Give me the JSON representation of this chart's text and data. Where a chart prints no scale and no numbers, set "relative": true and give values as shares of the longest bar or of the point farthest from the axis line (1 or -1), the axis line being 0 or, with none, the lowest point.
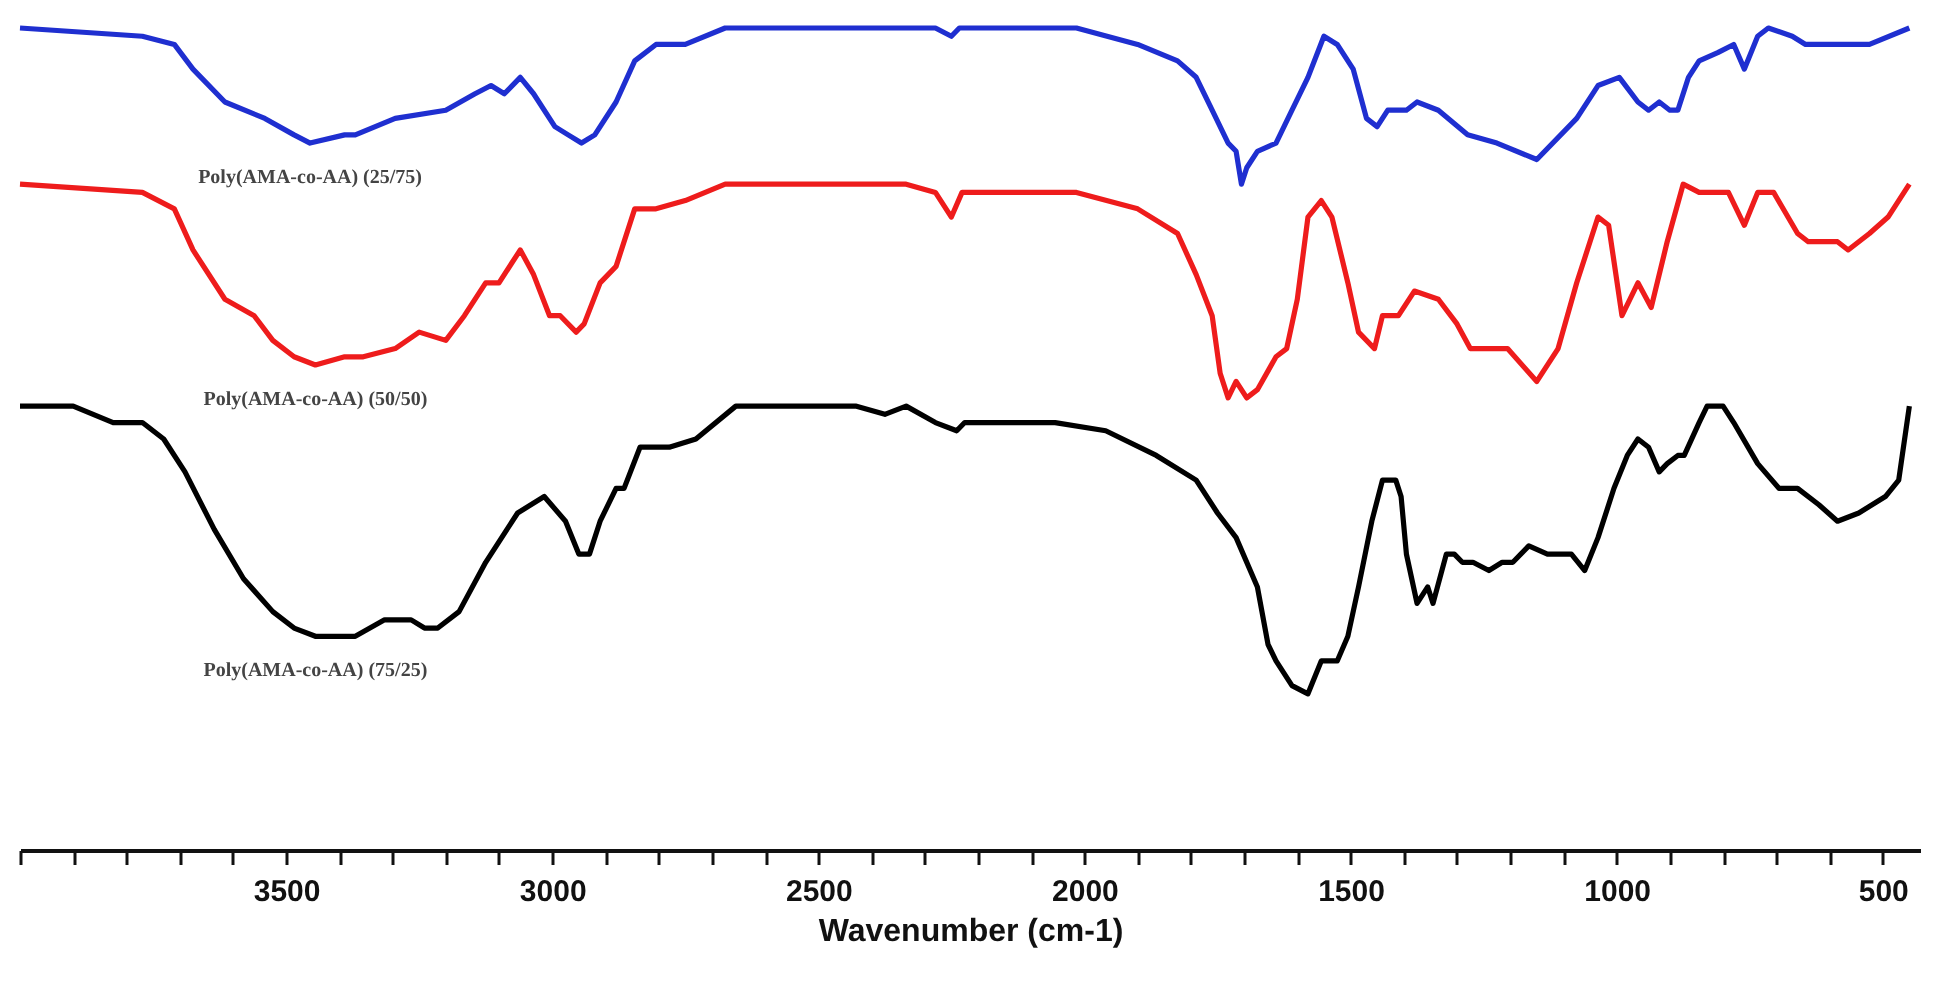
{
  "chart_data": {
    "type": "line",
    "relative": true,
    "xlabel": "Wavenumber (cm-1)",
    "xlim": [
      4000,
      430
    ],
    "xticks": [
      {
        "value": 4000,
        "label": null
      },
      {
        "value": 3900,
        "label": null
      },
      {
        "value": 3800,
        "label": null
      },
      {
        "value": 3700,
        "label": null
      },
      {
        "value": 3600,
        "label": null
      },
      3500,
      {
        "value": 3400,
        "label": null
      },
      {
        "value": 3300,
        "label": null
      },
      {
        "value": 3200,
        "label": null
      },
      {
        "value": 3100,
        "label": null
      },
      3000,
      {
        "value": 2900,
        "label": null
      },
      {
        "value": 2800,
        "label": null
      },
      {
        "value": 2700,
        "label": null
      },
      {
        "value": 2600,
        "label": null
      },
      2500,
      {
        "value": 2400,
        "label": null
      },
      {
        "value": 2300,
        "label": null
      },
      {
        "value": 2200,
        "label": null
      },
      {
        "value": 2100,
        "label": null
      },
      2000,
      {
        "value": 1900,
        "label": null
      },
      {
        "value": 1800,
        "label": null
      },
      {
        "value": 1700,
        "label": null
      },
      {
        "value": 1600,
        "label": null
      },
      1500,
      {
        "value": 1400,
        "label": null
      },
      {
        "value": 1300,
        "label": null
      },
      {
        "value": 1200,
        "label": null
      },
      {
        "value": 1100,
        "label": null
      },
      1000,
      {
        "value": 900,
        "label": null
      },
      {
        "value": 800,
        "label": null
      },
      {
        "value": 700,
        "label": null
      },
      {
        "value": 600,
        "label": null
      },
      500
    ],
    "line_style": "solid",
    "series": [
      {
        "name": "Poly(AMA-co-AA) (25/75)",
        "color": "#1f2fd0",
        "x": [
          4000,
          3770,
          3710,
          3675,
          3615,
          3540,
          3485,
          3455,
          3390,
          3370,
          3295,
          3200,
          3145,
          3115,
          3090,
          3060,
          3035,
          2995,
          2970,
          2945,
          2920,
          2880,
          2845,
          2805,
          2750,
          2675,
          2465,
          2280,
          2250,
          2235,
          2205,
          2015,
          1900,
          1825,
          1790,
          1760,
          1730,
          1715,
          1705,
          1695,
          1675,
          1640,
          1610,
          1580,
          1550,
          1525,
          1495,
          1470,
          1450,
          1430,
          1395,
          1375,
          1335,
          1280,
          1225,
          1150,
          1075,
          1035,
          995,
          960,
          940,
          920,
          900,
          885,
          865,
          845,
          810,
          780,
          760,
          735,
          715,
          670,
          645,
          585,
          555,
          525,
          450
        ],
        "values": [
          1.0,
          0.99,
          0.98,
          0.95,
          0.91,
          0.89,
          0.87,
          0.86,
          0.87,
          0.87,
          0.89,
          0.9,
          0.92,
          0.93,
          0.92,
          0.94,
          0.92,
          0.88,
          0.87,
          0.86,
          0.87,
          0.91,
          0.96,
          0.98,
          0.98,
          1.0,
          1.0,
          1.0,
          0.99,
          1.0,
          1.0,
          1.0,
          0.98,
          0.96,
          0.94,
          0.9,
          0.86,
          0.85,
          0.81,
          0.83,
          0.85,
          0.86,
          0.9,
          0.94,
          0.99,
          0.98,
          0.95,
          0.89,
          0.88,
          0.9,
          0.9,
          0.91,
          0.9,
          0.87,
          0.86,
          0.84,
          0.89,
          0.93,
          0.94,
          0.91,
          0.9,
          0.91,
          0.9,
          0.9,
          0.94,
          0.96,
          0.97,
          0.98,
          0.95,
          0.99,
          1.0,
          0.99,
          0.98,
          0.98,
          0.98,
          0.98,
          1.0
        ]
      },
      {
        "name": "Poly(AMA-co-AA) (50/50)",
        "color": "#ee1c1c",
        "x": [
          4000,
          3770,
          3710,
          3675,
          3615,
          3560,
          3525,
          3485,
          3445,
          3390,
          3355,
          3295,
          3250,
          3200,
          3165,
          3125,
          3100,
          3060,
          3035,
          3005,
          2985,
          2955,
          2940,
          2910,
          2880,
          2845,
          2805,
          2750,
          2675,
          2465,
          2390,
          2335,
          2280,
          2250,
          2230,
          2205,
          2015,
          1900,
          1825,
          1790,
          1760,
          1745,
          1730,
          1715,
          1695,
          1675,
          1640,
          1620,
          1600,
          1580,
          1555,
          1535,
          1505,
          1485,
          1455,
          1440,
          1410,
          1380,
          1335,
          1300,
          1275,
          1240,
          1205,
          1150,
          1110,
          1075,
          1035,
          1015,
          990,
          960,
          935,
          905,
          875,
          845,
          815,
          790,
          760,
          735,
          705,
          660,
          640,
          585,
          565,
          525,
          490,
          450
        ],
        "values": [
          0.81,
          0.8,
          0.78,
          0.73,
          0.67,
          0.65,
          0.62,
          0.6,
          0.59,
          0.6,
          0.6,
          0.61,
          0.63,
          0.62,
          0.65,
          0.69,
          0.69,
          0.73,
          0.7,
          0.65,
          0.65,
          0.63,
          0.64,
          0.69,
          0.71,
          0.78,
          0.78,
          0.79,
          0.81,
          0.81,
          0.81,
          0.81,
          0.8,
          0.77,
          0.8,
          0.8,
          0.8,
          0.78,
          0.75,
          0.7,
          0.65,
          0.58,
          0.55,
          0.57,
          0.55,
          0.56,
          0.6,
          0.61,
          0.67,
          0.77,
          0.79,
          0.77,
          0.69,
          0.63,
          0.61,
          0.65,
          0.65,
          0.68,
          0.67,
          0.64,
          0.61,
          0.61,
          0.61,
          0.57,
          0.61,
          0.69,
          0.77,
          0.76,
          0.65,
          0.69,
          0.66,
          0.74,
          0.81,
          0.8,
          0.8,
          0.8,
          0.76,
          0.8,
          0.8,
          0.75,
          0.74,
          0.74,
          0.73,
          0.75,
          0.77,
          0.81
        ]
      },
      {
        "name": "Poly(AMA-co-AA) (75/25)",
        "color": "#000000",
        "x": [
          4000,
          3900,
          3825,
          3770,
          3730,
          3690,
          3635,
          3580,
          3525,
          3485,
          3445,
          3370,
          3315,
          3265,
          3240,
          3215,
          3175,
          3125,
          3065,
          3015,
          2975,
          2950,
          2930,
          2910,
          2880,
          2865,
          2835,
          2805,
          2780,
          2730,
          2655,
          2430,
          2375,
          2335,
          2280,
          2240,
          2225,
          2055,
          1960,
          1865,
          1790,
          1750,
          1715,
          1675,
          1655,
          1640,
          1610,
          1580,
          1555,
          1525,
          1505,
          1485,
          1460,
          1440,
          1415,
          1405,
          1395,
          1375,
          1355,
          1345,
          1320,
          1305,
          1290,
          1270,
          1240,
          1215,
          1195,
          1165,
          1130,
          1085,
          1060,
          1035,
          1005,
          980,
          960,
          940,
          920,
          905,
          885,
          873,
          845,
          830,
          800,
          780,
          735,
          695,
          660,
          620,
          585,
          545,
          495,
          470,
          450
        ],
        "values": [
          0.54,
          0.54,
          0.52,
          0.52,
          0.5,
          0.46,
          0.39,
          0.33,
          0.29,
          0.27,
          0.26,
          0.26,
          0.28,
          0.28,
          0.27,
          0.27,
          0.29,
          0.35,
          0.41,
          0.43,
          0.4,
          0.36,
          0.36,
          0.4,
          0.44,
          0.44,
          0.49,
          0.49,
          0.49,
          0.5,
          0.54,
          0.54,
          0.53,
          0.54,
          0.52,
          0.51,
          0.52,
          0.52,
          0.51,
          0.48,
          0.45,
          0.41,
          0.38,
          0.32,
          0.25,
          0.23,
          0.2,
          0.19,
          0.23,
          0.23,
          0.26,
          0.32,
          0.4,
          0.45,
          0.45,
          0.43,
          0.36,
          0.3,
          0.32,
          0.3,
          0.36,
          0.36,
          0.35,
          0.35,
          0.34,
          0.35,
          0.35,
          0.37,
          0.36,
          0.36,
          0.34,
          0.38,
          0.44,
          0.48,
          0.5,
          0.49,
          0.46,
          0.47,
          0.48,
          0.48,
          0.52,
          0.54,
          0.54,
          0.52,
          0.47,
          0.44,
          0.44,
          0.42,
          0.4,
          0.41,
          0.43,
          0.45,
          0.54
        ]
      }
    ]
  }
}
